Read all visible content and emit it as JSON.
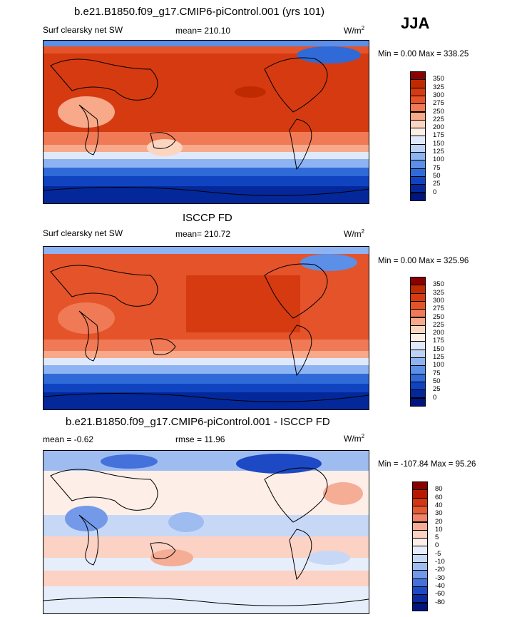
{
  "season": "JJA",
  "panels": [
    {
      "title": "b.e21.B1850.f09_g17.CMIP6-piControl.001 (yrs 101)",
      "left": "Surf clearsky net SW",
      "center": "mean= 210.10",
      "units": "W/m",
      "units_sup": "2",
      "minmax": "Min =   0.00 Max = 338.25"
    },
    {
      "title": "ISCCP FD",
      "left": "Surf clearsky net SW",
      "center": "mean= 210.72",
      "units": "W/m",
      "units_sup": "2",
      "minmax": "Min =   0.00 Max = 325.96"
    },
    {
      "title": "b.e21.B1850.f09_g17.CMIP6-piControl.001 - ISCCP FD",
      "left": "mean =  -0.62",
      "center": "rmse =  11.96",
      "units": "W/m",
      "units_sup": "2",
      "minmax": "Min = -107.84 Max =  95.26"
    }
  ],
  "chart_data": [
    {
      "type": "heatmap",
      "title": "b.e21.B1850.f09_g17.CMIP6-piControl.001 (yrs 101)",
      "variable": "Surf clearsky net SW",
      "units": "W/m2",
      "mean": 210.1,
      "min": 0.0,
      "max": 338.25,
      "colorbar_levels": [
        350,
        325,
        300,
        275,
        250,
        225,
        200,
        175,
        150,
        125,
        100,
        75,
        50,
        25,
        0
      ],
      "colorbar_colors": [
        "#8a0000",
        "#c02a00",
        "#d63a10",
        "#e4532a",
        "#ef7a55",
        "#f7a98a",
        "#fcd5c0",
        "#fdeee6",
        "#dfe9fb",
        "#bcd2f7",
        "#8db3f2",
        "#5b8fe8",
        "#2f6ad8",
        "#1043c0",
        "#04289a",
        "#001580"
      ]
    },
    {
      "type": "heatmap",
      "title": "ISCCP FD",
      "variable": "Surf clearsky net SW",
      "units": "W/m2",
      "mean": 210.72,
      "min": 0.0,
      "max": 325.96,
      "colorbar_levels": [
        350,
        325,
        300,
        275,
        250,
        225,
        200,
        175,
        150,
        125,
        100,
        75,
        50,
        25,
        0
      ],
      "colorbar_colors": [
        "#8a0000",
        "#c02a00",
        "#d63a10",
        "#e4532a",
        "#ef7a55",
        "#f7a98a",
        "#fcd5c0",
        "#fdeee6",
        "#dfe9fb",
        "#bcd2f7",
        "#8db3f2",
        "#5b8fe8",
        "#2f6ad8",
        "#1043c0",
        "#04289a",
        "#001580"
      ]
    },
    {
      "type": "heatmap",
      "title": "b.e21.B1850.f09_g17.CMIP6-piControl.001 - ISCCP FD",
      "units": "W/m2",
      "mean": -0.62,
      "rmse": 11.96,
      "min": -107.84,
      "max": 95.26,
      "colorbar_levels": [
        80,
        60,
        40,
        30,
        20,
        10,
        5,
        0,
        -5,
        -10,
        -20,
        -30,
        -40,
        -60,
        -80
      ],
      "colorbar_colors": [
        "#8a0000",
        "#b81800",
        "#d43515",
        "#e45a35",
        "#ef8466",
        "#f6ad95",
        "#fbd2c4",
        "#fdeee8",
        "#e6eefc",
        "#c7d8f7",
        "#9fbcf1",
        "#7399e8",
        "#4571db",
        "#1e49c4",
        "#0a2aa0",
        "#001580"
      ]
    }
  ]
}
